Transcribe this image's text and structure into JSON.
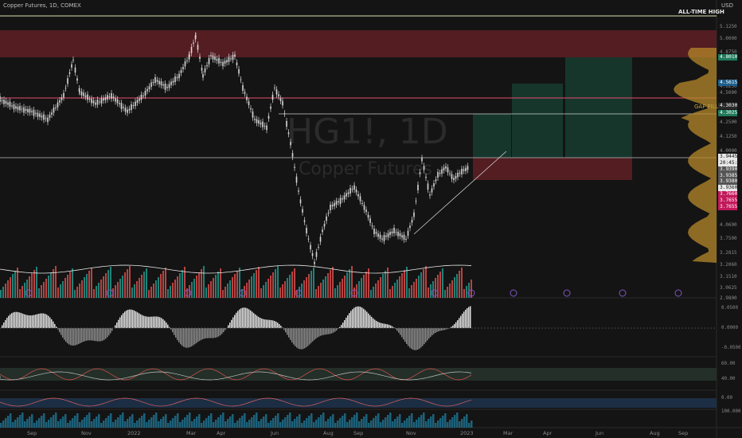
{
  "header": {
    "symbol_info": "Copper Futures, 1D, COMEX",
    "currency": "USD"
  },
  "watermark": {
    "ticker": "HG1!, 1D",
    "name": "Copper Futures"
  },
  "annotations": {
    "ath": "ALL-TIME HIGH",
    "gap_fill": "GAP FILL"
  },
  "price_scale": [
    "5.1250",
    "5.0000",
    "4.8750",
    "4.6250",
    "4.5000",
    "4.2500",
    "4.1250",
    "4.0000",
    "3.8750",
    "4.0690",
    "3.7500",
    "3.2815",
    "3.2060",
    "3.1510",
    "3.0625",
    "2.9800"
  ],
  "price_tags": [
    {
      "text": "4.8010",
      "color": "#1f7a5a"
    },
    {
      "text": "4.5615",
      "color": "#1e5f8c"
    },
    {
      "text": "4.3030",
      "color": "#2a2a2a"
    },
    {
      "text": "4.3025",
      "color": "#1f7a5a"
    },
    {
      "text": "3.9445",
      "color": "#e8e8e8"
    },
    {
      "text": "20:45:12",
      "color": "#e8e8e8"
    },
    {
      "text": "3.9390",
      "color": "#555555"
    },
    {
      "text": "3.9385",
      "color": "#555555"
    },
    {
      "text": "3.9380",
      "color": "#555555"
    },
    {
      "text": "3.9360",
      "color": "#e8e8e8"
    },
    {
      "text": "3.7660",
      "color": "#c2185b"
    },
    {
      "text": "3.7655",
      "color": "#c2185b"
    },
    {
      "text": "3.7655",
      "color": "#c2185b"
    }
  ],
  "indicator_scales": {
    "osc": [
      "0.0500",
      "0.0000",
      "-0.0500"
    ],
    "rsi": [
      "60.00",
      "40.00"
    ],
    "macd": [
      "0.00",
      "100.000"
    ]
  },
  "x_axis": [
    "Sep",
    "Nov",
    "2022",
    "Mar",
    "Apr",
    "Jun",
    "Aug",
    "Sep",
    "Nov",
    "2023",
    "Mar",
    "Apr",
    "Jun",
    "Aug",
    "Sep"
  ],
  "colors": {
    "up": "#26a69a",
    "down": "#ef5350",
    "supply": "#5a1e24",
    "demand": "#16362c",
    "candle": "#d9d9d9"
  }
}
